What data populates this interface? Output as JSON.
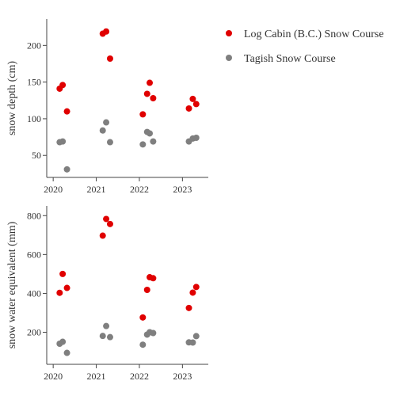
{
  "colors": {
    "log_cabin": "#e00000",
    "tagish": "#7f7f7f",
    "axis": "#444444"
  },
  "legend": [
    {
      "name": "Log Cabin (B.C.) Snow Course",
      "color": "#e00000"
    },
    {
      "name": "Tagish Snow Course",
      "color": "#7f7f7f"
    }
  ],
  "chart_data": [
    {
      "type": "scatter",
      "title": "",
      "xlabel": "",
      "ylabel": "snow depth (cm)",
      "xlim": [
        2019.85,
        2023.6
      ],
      "ylim": [
        20,
        236
      ],
      "xticks": [
        2020,
        2021,
        2022,
        2023
      ],
      "xtick_labels": [
        "2020",
        "2021",
        "2022",
        "2023"
      ],
      "yticks": [
        50,
        100,
        150,
        200
      ],
      "ytick_labels": [
        "50",
        "100",
        "150",
        "200"
      ],
      "grid": false,
      "legend_position": "top-right",
      "series": [
        {
          "name": "Log Cabin (B.C.) Snow Course",
          "color": "#e00000",
          "points": [
            {
              "x": 2020.15,
              "y": 141
            },
            {
              "x": 2020.22,
              "y": 146
            },
            {
              "x": 2020.32,
              "y": 110
            },
            {
              "x": 2021.15,
              "y": 216
            },
            {
              "x": 2021.23,
              "y": 219
            },
            {
              "x": 2021.32,
              "y": 182
            },
            {
              "x": 2022.08,
              "y": 106
            },
            {
              "x": 2022.18,
              "y": 134
            },
            {
              "x": 2022.24,
              "y": 149
            },
            {
              "x": 2022.32,
              "y": 128
            },
            {
              "x": 2023.15,
              "y": 114
            },
            {
              "x": 2023.24,
              "y": 127
            },
            {
              "x": 2023.32,
              "y": 120
            }
          ]
        },
        {
          "name": "Tagish Snow Course",
          "color": "#7f7f7f",
          "points": [
            {
              "x": 2020.15,
              "y": 68
            },
            {
              "x": 2020.22,
              "y": 69
            },
            {
              "x": 2020.32,
              "y": 31
            },
            {
              "x": 2021.15,
              "y": 84
            },
            {
              "x": 2021.23,
              "y": 95
            },
            {
              "x": 2021.32,
              "y": 68
            },
            {
              "x": 2022.08,
              "y": 65
            },
            {
              "x": 2022.18,
              "y": 82
            },
            {
              "x": 2022.24,
              "y": 80
            },
            {
              "x": 2022.32,
              "y": 69
            },
            {
              "x": 2023.15,
              "y": 69
            },
            {
              "x": 2023.24,
              "y": 73
            },
            {
              "x": 2023.32,
              "y": 74
            }
          ]
        }
      ]
    },
    {
      "type": "scatter",
      "title": "",
      "xlabel": "",
      "ylabel": "snow water equivalent (mm)",
      "xlim": [
        2019.85,
        2023.6
      ],
      "ylim": [
        35,
        850
      ],
      "xticks": [
        2020,
        2021,
        2022,
        2023
      ],
      "xtick_labels": [
        "2020",
        "2021",
        "2022",
        "2023"
      ],
      "yticks": [
        200,
        400,
        600,
        800
      ],
      "ytick_labels": [
        "200",
        "400",
        "600",
        "800"
      ],
      "grid": false,
      "series": [
        {
          "name": "Log Cabin (B.C.) Snow Course",
          "color": "#e00000",
          "points": [
            {
              "x": 2020.15,
              "y": 403
            },
            {
              "x": 2020.22,
              "y": 500
            },
            {
              "x": 2020.32,
              "y": 428
            },
            {
              "x": 2021.15,
              "y": 697
            },
            {
              "x": 2021.23,
              "y": 783
            },
            {
              "x": 2021.32,
              "y": 757
            },
            {
              "x": 2022.08,
              "y": 276
            },
            {
              "x": 2022.18,
              "y": 418
            },
            {
              "x": 2022.24,
              "y": 483
            },
            {
              "x": 2022.32,
              "y": 478
            },
            {
              "x": 2023.15,
              "y": 325
            },
            {
              "x": 2023.24,
              "y": 404
            },
            {
              "x": 2023.32,
              "y": 433
            }
          ]
        },
        {
          "name": "Tagish Snow Course",
          "color": "#7f7f7f",
          "points": [
            {
              "x": 2020.15,
              "y": 141
            },
            {
              "x": 2020.22,
              "y": 151
            },
            {
              "x": 2020.32,
              "y": 94
            },
            {
              "x": 2021.15,
              "y": 181
            },
            {
              "x": 2021.23,
              "y": 232
            },
            {
              "x": 2021.32,
              "y": 175
            },
            {
              "x": 2022.08,
              "y": 136
            },
            {
              "x": 2022.18,
              "y": 188
            },
            {
              "x": 2022.24,
              "y": 200
            },
            {
              "x": 2022.32,
              "y": 196
            },
            {
              "x": 2023.15,
              "y": 148
            },
            {
              "x": 2023.24,
              "y": 147
            },
            {
              "x": 2023.32,
              "y": 180
            }
          ]
        }
      ]
    }
  ]
}
